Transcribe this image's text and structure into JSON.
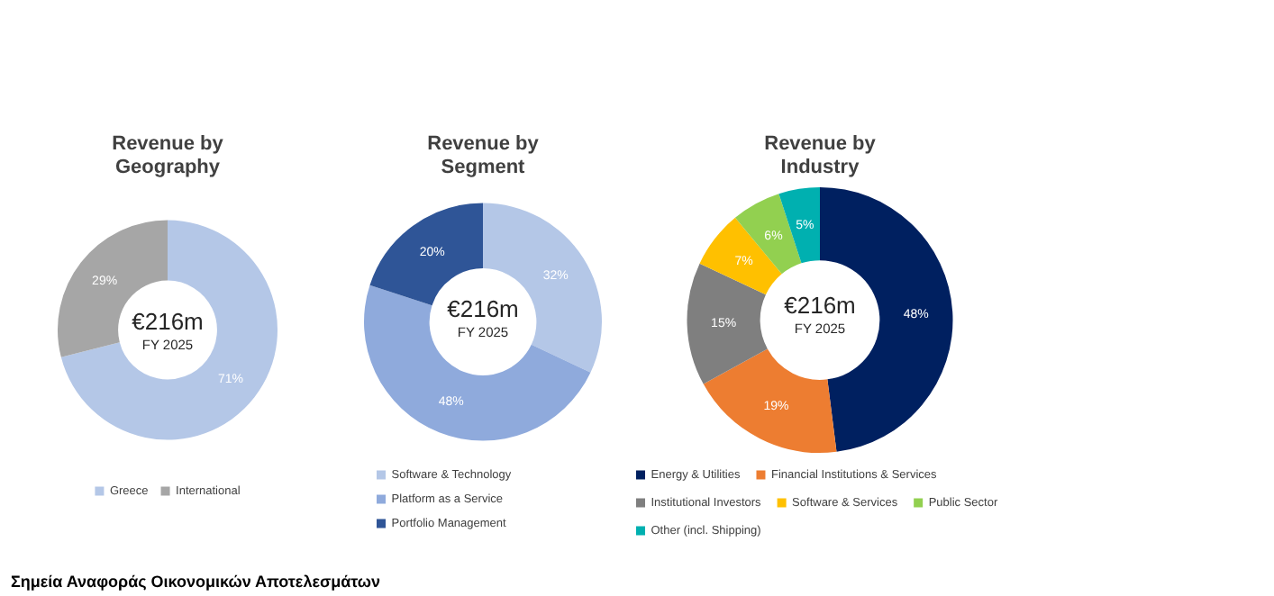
{
  "chart_data": [
    {
      "type": "donut",
      "title": "Revenue by Geography",
      "categories": [
        "Greece",
        "International"
      ],
      "values": [
        71,
        29
      ],
      "colors": [
        "#b4c7e7",
        "#a6a6a6"
      ],
      "data_labels": true,
      "value_labels": [
        "71%",
        "29%"
      ],
      "legend": "bottom",
      "annotations": [
        "€216m",
        "FY 2025",
        "Σημεία Αναφοράς Οικονομικών Αποτελεσμάτων"
      ]
    },
    {
      "type": "donut",
      "title": "Revenue by Segment",
      "categories": [
        "Software & Technology",
        "Platform as a Service",
        "Portfolio Management"
      ],
      "values": [
        32,
        48,
        20
      ],
      "colors": [
        "#b4c7e7",
        "#8faadc",
        "#2f5597"
      ],
      "data_labels": true,
      "value_labels": [
        "32%",
        "48%",
        "20%"
      ],
      "legend": "bottom",
      "annotations": [
        "€216m",
        "FY 2025"
      ]
    },
    {
      "type": "donut",
      "title": "Revenue by Industry",
      "categories": [
        "Energy & Utilities",
        "Financial Institutions & Services",
        "Institutional Investors",
        "Software & Services",
        "Public Sector",
        "Other (incl. Shipping)"
      ],
      "values": [
        48,
        19,
        15,
        7,
        6,
        5
      ],
      "colors": [
        "#002060",
        "#ed7d31",
        "#7f7f7f",
        "#ffc000",
        "#92d050",
        "#00b0b0"
      ],
      "data_labels": true,
      "value_labels": [
        "48%",
        "19%",
        "15%",
        "7%",
        "6%",
        "5%"
      ],
      "legend": "bottom",
      "annotations": [
        "€216m",
        "FY 2025"
      ]
    }
  ]
}
